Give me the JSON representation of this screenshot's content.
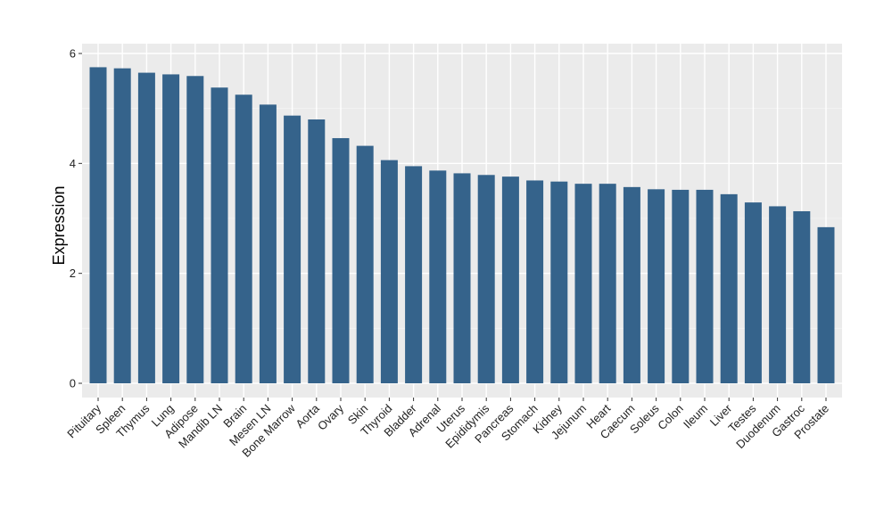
{
  "chart_data": {
    "type": "bar",
    "title": "",
    "xlabel": "",
    "ylabel": "Expression",
    "ylim": [
      0,
      6
    ],
    "yticks": [
      0,
      2,
      4,
      6
    ],
    "grid": true,
    "legend": "none",
    "colors": {
      "bar": "#35638b",
      "panel": "#ebebeb",
      "grid_major": "#ffffff",
      "grid_minor": "#f5f5f5"
    },
    "categories": [
      "Pituitary",
      "Spleen",
      "Thymus",
      "Lung",
      "Adipose",
      "Mandib LN",
      "Brain",
      "Mesen LN",
      "Bone Marrow",
      "Aorta",
      "Ovary",
      "Skin",
      "Thyroid",
      "Bladder",
      "Adrenal",
      "Uterus",
      "Epididymis",
      "Pancreas",
      "Stomach",
      "Kidney",
      "Jejunum",
      "Heart",
      "Caecum",
      "Soleus",
      "Colon",
      "Ileum",
      "Liver",
      "Testes",
      "Duodenum",
      "Gastroc",
      "Prostate"
    ],
    "values": [
      5.75,
      5.73,
      5.65,
      5.62,
      5.59,
      5.38,
      5.25,
      5.07,
      4.87,
      4.8,
      4.46,
      4.32,
      4.06,
      3.95,
      3.87,
      3.82,
      3.79,
      3.76,
      3.69,
      3.67,
      3.63,
      3.63,
      3.57,
      3.53,
      3.52,
      3.52,
      3.44,
      3.29,
      3.22,
      3.13,
      2.84
    ]
  }
}
